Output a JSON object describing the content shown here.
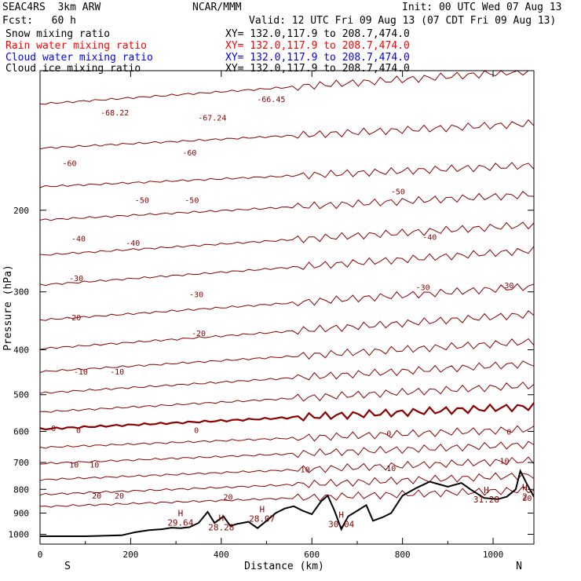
{
  "header": {
    "model": "SEAC4RS  3km ARW",
    "center": "NCAR/MMM",
    "init": "Init: 00 UTC Wed 07 Aug 13",
    "fcst": "Fcst:   60 h",
    "valid": "Valid: 12 UTC Fri 09 Aug 13 (07 CDT Fri 09 Aug 13)"
  },
  "fields": [
    {
      "label": "Snow mixing ratio",
      "xy": "XY= 132.0,117.9 to 208.7,474.0",
      "color": "#000000"
    },
    {
      "label": "Rain water mixing ratio",
      "xy": "XY= 132.0,117.9 to 208.7,474.0",
      "color": "#ff0000"
    },
    {
      "label": "Cloud water mixing ratio",
      "xy": "XY= 132.0,117.9 to 208.7,474.0",
      "color": "#0000ff"
    },
    {
      "label": "Cloud ice mixing ratio",
      "xy": "XY= 132.0,117.9 to 208.7,474.0",
      "color": "#000000"
    }
  ],
  "colors": {
    "isotherm": "#8b0000",
    "terrain": "#000000",
    "text": "#000000"
  },
  "chart_data": {
    "type": "line",
    "title": "",
    "xlabel": "Distance (km)",
    "ylabel": "Pressure (hPa)",
    "xlim": [
      0,
      1090
    ],
    "ylim": [
      1050,
      100
    ],
    "y_scale": "log",
    "x_ticks": [
      0,
      200,
      400,
      600,
      800,
      1000
    ],
    "y_ticks": [
      200,
      300,
      400,
      500,
      600,
      700,
      800,
      900,
      1000
    ],
    "x_end_labels": {
      "left": "S",
      "right": "N"
    },
    "series": [
      {
        "type": "isotherms",
        "contour_interval_C": 5,
        "levels_hPa_left": [
          118,
          147,
          178,
          210,
          250,
          290,
          345,
          398,
          446,
          496,
          545,
          593,
          650,
          704,
          763,
          821,
          872
        ],
        "levels_hPa_right": [
          100,
          130,
          160,
          185,
          215,
          244,
          292,
          335,
          384,
          428,
          477,
          530,
          593,
          640,
          693,
          746,
          802
        ],
        "bold_level_C": 0
      },
      {
        "type": "terrain_pressure_hPa",
        "x": [
          0,
          100,
          180,
          210,
          240,
          270,
          290,
          310,
          330,
          350,
          370,
          385,
          405,
          420,
          435,
          460,
          480,
          500,
          520,
          540,
          560,
          580,
          600,
          620,
          635,
          650,
          665,
          680,
          700,
          720,
          735,
          755,
          775,
          800,
          830,
          860,
          900,
          930,
          950,
          980,
          1010,
          1030,
          1050,
          1060,
          1075,
          1090
        ],
        "y": [
          1010,
          1010,
          1005,
          990,
          980,
          975,
          968,
          970,
          965,
          945,
          895,
          945,
          915,
          960,
          950,
          940,
          970,
          935,
          900,
          880,
          870,
          890,
          905,
          850,
          825,
          890,
          975,
          915,
          890,
          865,
          935,
          920,
          900,
          825,
          795,
          770,
          790,
          775,
          800,
          835,
          840,
          830,
          800,
          730,
          780,
          830
        ]
      }
    ],
    "contour_labels": [
      {
        "text": "-68.22",
        "x": 165,
        "p": 123
      },
      {
        "text": "-67.24",
        "x": 380,
        "p": 126
      },
      {
        "text": "-66.45",
        "x": 510,
        "p": 115
      },
      {
        "text": "-60",
        "x": 65,
        "p": 158
      },
      {
        "text": "-60",
        "x": 330,
        "p": 150
      },
      {
        "text": "-50",
        "x": 225,
        "p": 190
      },
      {
        "text": "-50",
        "x": 335,
        "p": 190
      },
      {
        "text": "-50",
        "x": 790,
        "p": 182
      },
      {
        "text": "-40",
        "x": 85,
        "p": 230
      },
      {
        "text": "-40",
        "x": 205,
        "p": 235
      },
      {
        "text": "-40",
        "x": 860,
        "p": 228
      },
      {
        "text": "-30",
        "x": 80,
        "p": 280
      },
      {
        "text": "-30",
        "x": 345,
        "p": 303
      },
      {
        "text": "-30",
        "x": 845,
        "p": 293
      },
      {
        "text": "-30",
        "x": 1030,
        "p": 290
      },
      {
        "text": "-20",
        "x": 75,
        "p": 340
      },
      {
        "text": "-20",
        "x": 350,
        "p": 368
      },
      {
        "text": "-10",
        "x": 90,
        "p": 445
      },
      {
        "text": "-10",
        "x": 170,
        "p": 445
      },
      {
        "text": "0",
        "x": 30,
        "p": 590
      },
      {
        "text": "0",
        "x": 85,
        "p": 595
      },
      {
        "text": "0",
        "x": 345,
        "p": 595
      },
      {
        "text": "0",
        "x": 770,
        "p": 605
      },
      {
        "text": "0",
        "x": 1035,
        "p": 600
      },
      {
        "text": "10",
        "x": 75,
        "p": 707
      },
      {
        "text": "10",
        "x": 120,
        "p": 707
      },
      {
        "text": "10",
        "x": 585,
        "p": 723
      },
      {
        "text": "10",
        "x": 775,
        "p": 720
      },
      {
        "text": "10",
        "x": 1025,
        "p": 693
      },
      {
        "text": "20",
        "x": 125,
        "p": 825
      },
      {
        "text": "20",
        "x": 175,
        "p": 825
      },
      {
        "text": "20",
        "x": 415,
        "p": 830
      },
      {
        "text": "20",
        "x": 1075,
        "p": 835
      }
    ],
    "annotations": [
      {
        "mark": "H",
        "value": "29.64",
        "x": 310,
        "p": 944
      },
      {
        "mark": "H",
        "value": "28.28",
        "x": 400,
        "p": 966
      },
      {
        "mark": "H",
        "value": "28.07",
        "x": 490,
        "p": 925
      },
      {
        "mark": "H",
        "value": "30.04",
        "x": 665,
        "p": 950
      },
      {
        "mark": "H",
        "value": "31.28",
        "x": 985,
        "p": 840
      },
      {
        "mark": "H",
        "value": "2",
        "x": 1070,
        "p": 830
      }
    ]
  }
}
